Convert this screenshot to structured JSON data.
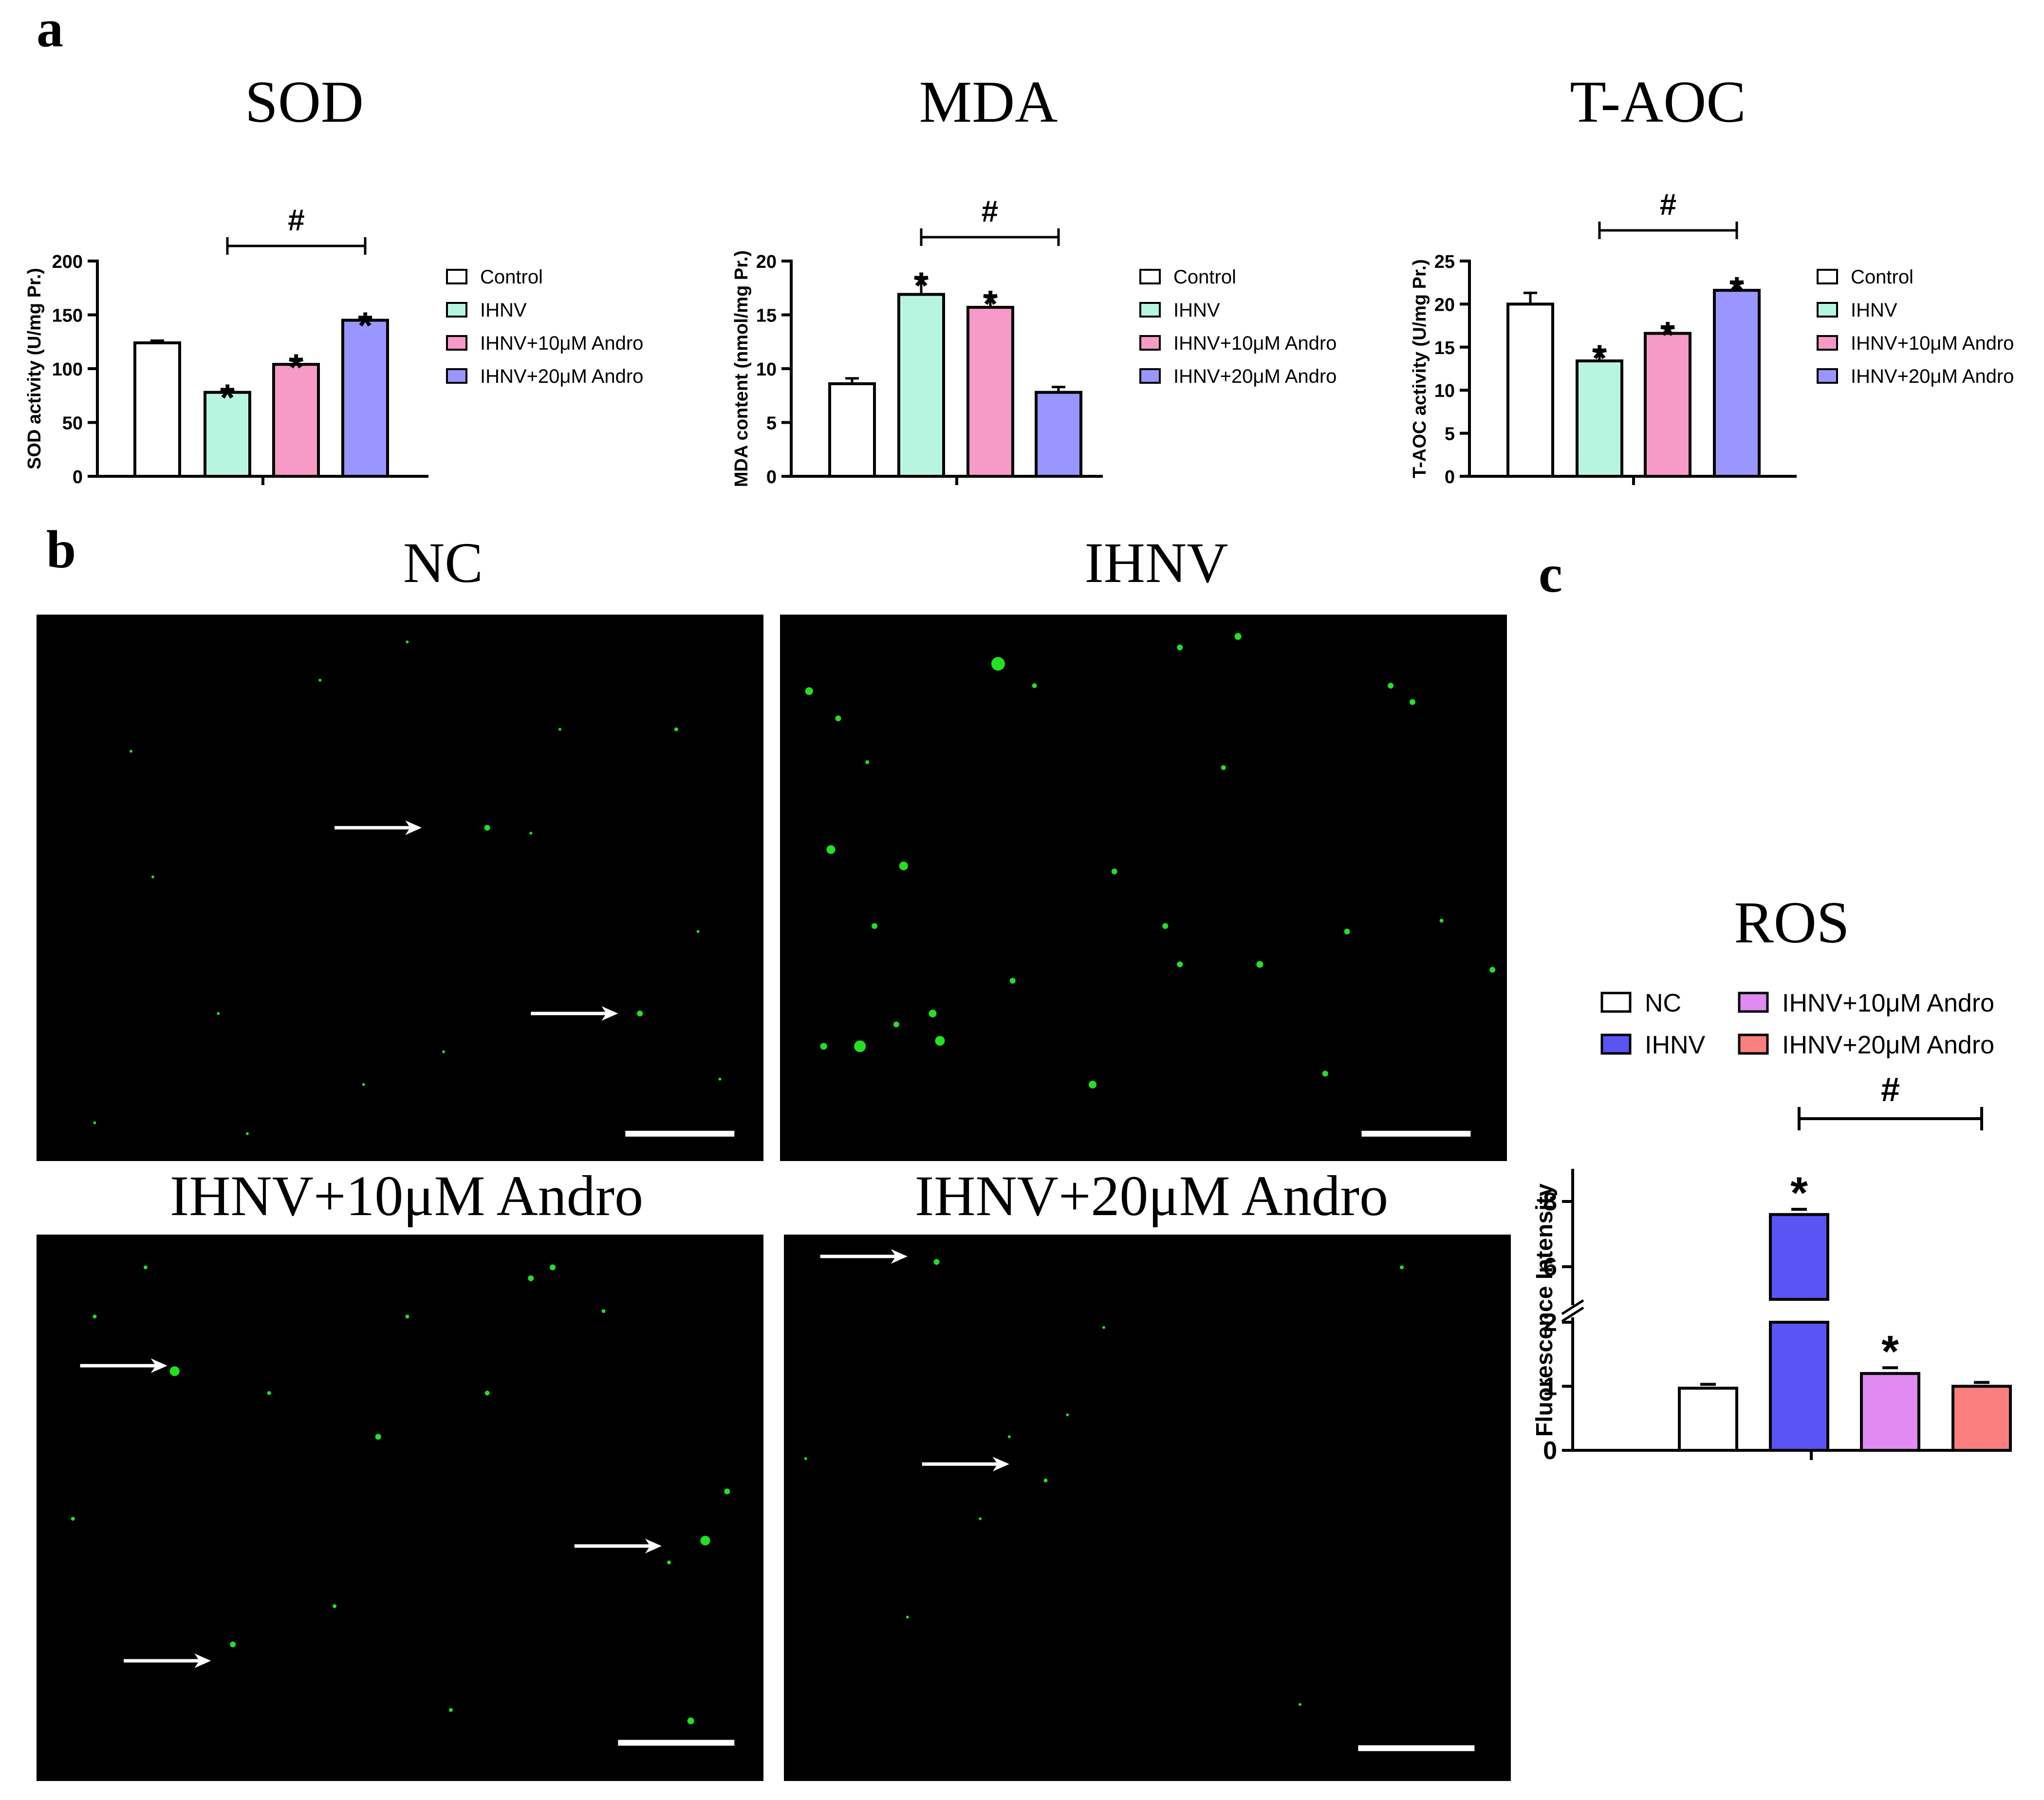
{
  "panels": {
    "a": "a",
    "b": "b",
    "c": "c"
  },
  "chart_data": [
    {
      "type": "bar",
      "title": "SOD",
      "ylabel": "SOD activity (U/mg Pr.)",
      "ylim": [
        0,
        200
      ],
      "yticks": [
        "0",
        "50",
        "100",
        "150",
        "200"
      ],
      "categories": [
        "Control",
        "IHNV",
        "IHNV+10μM Andro",
        "IHNV+20μM Andro"
      ],
      "values": [
        124,
        78,
        104,
        145
      ],
      "errors": [
        2,
        3,
        5,
        3
      ],
      "colors": [
        "#ffffff",
        "#b8f5e0",
        "#f79ac8",
        "#9a96ff"
      ],
      "significance": [
        "",
        "*",
        "*",
        "*"
      ],
      "bracket": {
        "from": 1,
        "to": 3,
        "label": "#"
      },
      "legend": [
        "Control",
        "IHNV",
        "IHNV+10μM Andro",
        "IHNV+20μM Andro"
      ]
    },
    {
      "type": "bar",
      "title": "MDA",
      "ylabel": "MDA content (nmol/mg Pr.)",
      "ylim": [
        0,
        20
      ],
      "yticks": [
        "0",
        "5",
        "10",
        "15",
        "20"
      ],
      "categories": [
        "Control",
        "IHNV",
        "IHNV+10μM Andro",
        "IHNV+20μM Andro"
      ],
      "values": [
        8.6,
        16.9,
        15.7,
        7.8
      ],
      "errors": [
        0.5,
        1.6,
        1.1,
        0.5
      ],
      "colors": [
        "#ffffff",
        "#b8f5e0",
        "#f79ac8",
        "#9a96ff"
      ],
      "significance": [
        "",
        "*",
        "*",
        ""
      ],
      "bracket": {
        "from": 1,
        "to": 3,
        "label": "#"
      },
      "legend": [
        "Control",
        "IHNV",
        "IHNV+10μM Andro",
        "IHNV+20μM Andro"
      ]
    },
    {
      "type": "bar",
      "title": "T-AOC",
      "ylabel": "T-AOC activity (U/mg Pr.)",
      "ylim": [
        0,
        25
      ],
      "yticks": [
        "0",
        "5",
        "10",
        "15",
        "20",
        "25"
      ],
      "categories": [
        "Control",
        "IHNV",
        "IHNV+10μM Andro",
        "IHNV+20μM Andro"
      ],
      "values": [
        20.0,
        13.4,
        16.6,
        21.6
      ],
      "errors": [
        1.3,
        1.3,
        0.8,
        1.0
      ],
      "colors": [
        "#ffffff",
        "#b8f5e0",
        "#f79ac8",
        "#9a96ff"
      ],
      "significance": [
        "",
        "*",
        "*",
        "*"
      ],
      "bracket": {
        "from": 1,
        "to": 3,
        "label": "#"
      },
      "legend": [
        "Control",
        "IHNV",
        "IHNV+10μM Andro",
        "IHNV+20μM Andro"
      ]
    },
    {
      "type": "bar",
      "title": "ROS",
      "ylabel": "Fluorescence Intensity",
      "y_axis_break": [
        2,
        5
      ],
      "yticks_lower": [
        "0",
        "1",
        "2"
      ],
      "yticks_upper": [
        "6",
        "8"
      ],
      "categories": [
        "NC",
        "IHNV",
        "IHNV+10μM Andro",
        "IHNV+20μM Andro"
      ],
      "values": [
        0.97,
        7.6,
        1.2,
        1.0
      ],
      "errors": [
        0.02,
        0.08,
        0.03,
        0.02
      ],
      "colors": [
        "#ffffff",
        "#5b54f5",
        "#e08af2",
        "#fb7f7f"
      ],
      "significance": [
        "",
        "*",
        "*",
        ""
      ],
      "bracket": {
        "from": 1,
        "to": 3,
        "label": "#"
      },
      "legend": [
        "NC",
        "IHNV",
        "IHNV+10μM Andro",
        "IHNV+20μM Andro"
      ]
    }
  ],
  "micrographs": [
    {
      "label": "NC",
      "density": "low"
    },
    {
      "label": "IHNV",
      "density": "high"
    },
    {
      "label": "IHNV+10μM Andro",
      "density": "medium"
    },
    {
      "label": "IHNV+20μM Andro",
      "density": "low"
    }
  ]
}
